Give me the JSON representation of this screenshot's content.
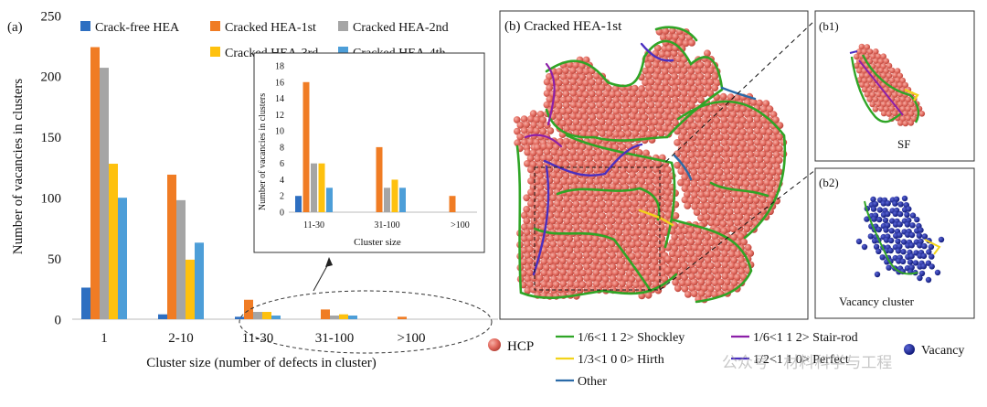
{
  "colors": {
    "crack_free": "#2e6fc1",
    "cracked_1st": "#f07c24",
    "cracked_2nd": "#a5a5a5",
    "cracked_3rd": "#fec10e",
    "cracked_4th": "#4d9ed8",
    "hcp_atom": "#e26a5f",
    "shockley": "#2fa526",
    "stair_rod": "#8c1fa8",
    "hirth": "#f2d31a",
    "perfect": "#4a2fc0",
    "other": "#2a6aa8",
    "vacancy": "#1c2aa0"
  },
  "chart_data": [
    {
      "type": "bar",
      "panel_label": "(a)",
      "xlabel": "Cluster size (number of  defects in cluster)",
      "ylabel": "Number of vacancies in clusters",
      "categories": [
        "1",
        "2-10",
        "11-30",
        "31-100",
        ">100"
      ],
      "ylim": [
        0,
        250
      ],
      "yticks": [
        "0",
        "50",
        "100",
        "150",
        "200",
        "250"
      ],
      "legend_position": "top",
      "series": [
        {
          "name": "Crack-free HEA",
          "color_key": "crack_free",
          "values": [
            26,
            4,
            2,
            0,
            0
          ]
        },
        {
          "name": "Cracked HEA-1st",
          "color_key": "cracked_1st",
          "values": [
            224,
            119,
            16,
            8,
            2
          ]
        },
        {
          "name": "Cracked HEA-2nd",
          "color_key": "cracked_2nd",
          "values": [
            207,
            98,
            6,
            3,
            0
          ]
        },
        {
          "name": "Cracked HEA-3rd",
          "color_key": "cracked_3rd",
          "values": [
            128,
            49,
            6,
            4,
            0
          ]
        },
        {
          "name": "Cracked HEA-4th",
          "color_key": "cracked_4th",
          "values": [
            100,
            63,
            3,
            3,
            0
          ]
        }
      ]
    },
    {
      "type": "bar",
      "panel_label": "",
      "xlabel": "Cluster size",
      "ylabel": "Number of vacancies in clusters",
      "categories": [
        "11-30",
        "31-100",
        ">100"
      ],
      "ylim": [
        0,
        18
      ],
      "yticks": [
        "0",
        "2",
        "4",
        "6",
        "8",
        "10",
        "12",
        "14",
        "16",
        "18"
      ],
      "series": [
        {
          "name": "Crack-free HEA",
          "color_key": "crack_free",
          "values": [
            2,
            0,
            0
          ]
        },
        {
          "name": "Cracked HEA-1st",
          "color_key": "cracked_1st",
          "values": [
            16,
            8,
            2
          ]
        },
        {
          "name": "Cracked HEA-2nd",
          "color_key": "cracked_2nd",
          "values": [
            6,
            3,
            0
          ]
        },
        {
          "name": "Cracked HEA-3rd",
          "color_key": "cracked_3rd",
          "values": [
            6,
            4,
            0
          ]
        },
        {
          "name": "Cracked HEA-4th",
          "color_key": "cracked_4th",
          "values": [
            3,
            3,
            0
          ]
        }
      ]
    }
  ],
  "panels": {
    "b_title": "(b) Cracked HEA-1st",
    "b1_label": "(b1)",
    "b1_note": "SF",
    "b2_label": "(b2)",
    "b2_note": "Vacancy cluster"
  },
  "legend_b": {
    "hcp": "HCP",
    "shockley": "1/6<1 1 2> Shockley",
    "stair_rod": "1/6<1 1 2> Stair-rod",
    "hirth": "1/3<1 0 0> Hirth",
    "perfect": "1/2<1 1 0> Perfect",
    "other": "Other",
    "vacancy": "Vacancy"
  },
  "watermark": "公众号 · 材料科学与工程"
}
